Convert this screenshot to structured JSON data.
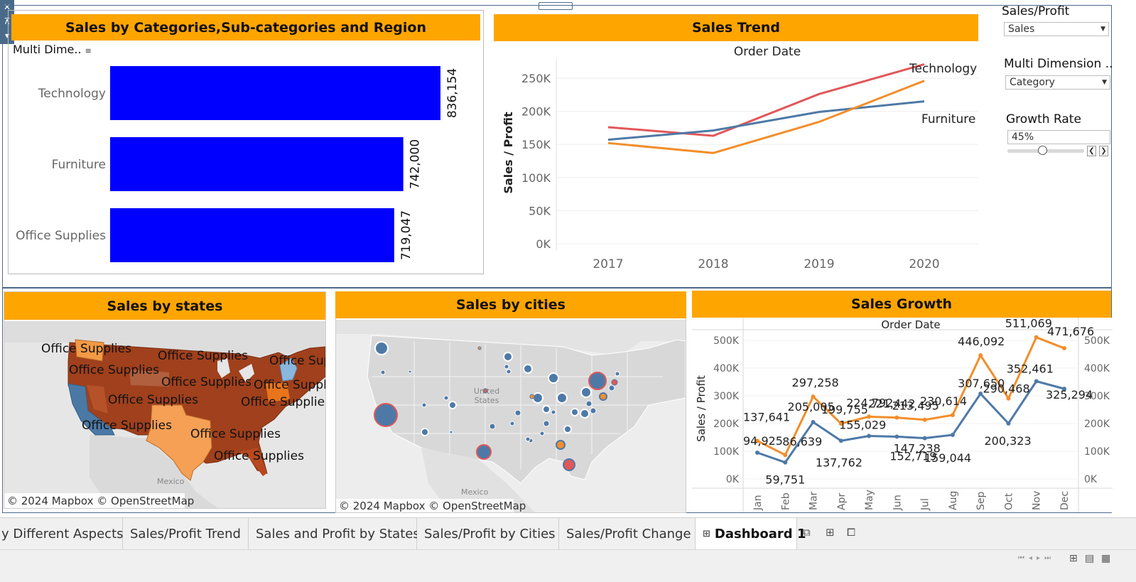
{
  "toolbar": {
    "close": "✕",
    "pin": "⊼",
    "menu": "▾"
  },
  "panel_categories": {
    "title": "Sales by Categories,Sub-categories and Region",
    "header": "Multi Dime..",
    "chart_data": {
      "type": "bar",
      "categories": [
        "Technology",
        "Furniture",
        "Office Supplies"
      ],
      "values": [
        836154,
        742000,
        719047
      ],
      "value_labels": [
        "836,154",
        "742,000",
        "719,047"
      ],
      "color": "#0000ff"
    }
  },
  "panel_trend": {
    "title": "Sales Trend",
    "chart_data": {
      "type": "line",
      "title": "Order Date",
      "ylabel": "Sales / Profit",
      "x": [
        "2017",
        "2018",
        "2019",
        "2020"
      ],
      "yticks": [
        "0K",
        "50K",
        "100K",
        "150K",
        "200K",
        "250K"
      ],
      "ylim": [
        0,
        280000
      ],
      "series": [
        {
          "name": "Technology",
          "color": "#e15759",
          "values": [
            176000,
            163000,
            226000,
            271000
          ]
        },
        {
          "name": "Furniture",
          "color": "#4e79a7",
          "values": [
            157000,
            171000,
            199000,
            215000
          ]
        },
        {
          "name": "",
          "color": "#f28e2b",
          "values": [
            152000,
            137000,
            184000,
            246000
          ]
        }
      ]
    }
  },
  "controls": {
    "sales_profit_label": "Sales/Profit",
    "sales_profit_value": "Sales",
    "multi_dim_label": "Multi Dimension ..",
    "multi_dim_value": "Category",
    "growth_label": "Growth Rate",
    "growth_value": "45%",
    "growth_fraction": 0.45
  },
  "panel_states": {
    "title": "Sales by states",
    "labels": [
      "Office Supplies",
      "Office Supplies",
      "Office Supplies",
      "Office Sup",
      "Office Supplies",
      "Office Suppl",
      "Office Supplie",
      "Office Supplies",
      "Office Supplies",
      "Office Supplies",
      "Office Supplies"
    ],
    "copyright": "© 2024 Mapbox © OpenStreetMap",
    "country_label": "Mexico"
  },
  "panel_cities": {
    "title": "Sales by cities",
    "country_label": "United States",
    "country_label_line1": "United",
    "country_label_line2": "States",
    "mexico": "Mexico",
    "copyright": "© 2024 Mapbox © OpenStreetMap"
  },
  "panel_growth": {
    "title": "Sales Growth",
    "chart_data": {
      "type": "line",
      "title": "Order Date",
      "ylabel": "Sales / Profit",
      "x": [
        "Jan",
        "Feb",
        "Mar",
        "Apr",
        "May",
        "Jun",
        "Jul",
        "Aug",
        "Sep",
        "Oct",
        "Nov",
        "Dec"
      ],
      "yticks": [
        "0K",
        "100K",
        "200K",
        "300K",
        "400K",
        "500K"
      ],
      "ylim": [
        0,
        500000
      ],
      "series": [
        {
          "name": "",
          "color": "#f28e2b",
          "values": [
            137641,
            86639,
            297258,
            199755,
            224792,
            221442,
            213495,
            230614,
            446092,
            290468,
            511069,
            471676
          ],
          "labels": [
            "137,641",
            "86,639",
            "297,258",
            "199,755",
            "224,792",
            "221,442",
            "213,495",
            "230,614",
            "446,092",
            "290,468",
            "511,069",
            "471,676"
          ]
        },
        {
          "name": "",
          "color": "#4e79a7",
          "values": [
            94925,
            59751,
            205005,
            137762,
            155029,
            152719,
            147238,
            159044,
            307650,
            200323,
            352461,
            325294
          ],
          "labels": [
            "94,925",
            "59,751",
            "205,005",
            "137,762",
            "155,029",
            "152,719",
            "147,238",
            "159,044",
            "307,650",
            "200,323",
            "352,461",
            "325,294"
          ]
        }
      ]
    }
  },
  "tabs": [
    {
      "label": "y Different Aspects"
    },
    {
      "label": "Sales/Profit Trend"
    },
    {
      "label": "Sales and Profit by States"
    },
    {
      "label": "Sales/Profit by Cities"
    },
    {
      "label": "Sales/Profit Change"
    },
    {
      "label": "Dashboard 1",
      "icon": "dashboard-icon"
    }
  ]
}
